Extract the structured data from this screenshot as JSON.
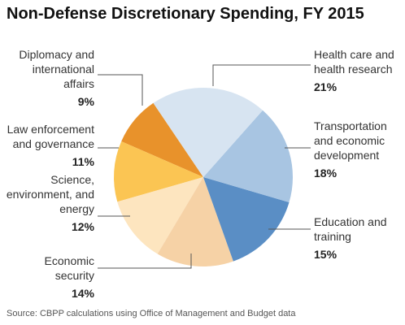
{
  "chart_data": {
    "type": "pie",
    "title": "Non-Defense Discretionary Spending, FY 2015",
    "source": "Source: CBPP calculations using Office of Management and Budget data",
    "categories": [
      "Health care and health research",
      "Transportation and economic development",
      "Education and training",
      "Economic security",
      "Science, environment, and energy",
      "Law enforcement and governance",
      "Diplomacy and international affairs"
    ],
    "values": [
      21,
      18,
      15,
      14,
      12,
      11,
      9
    ],
    "value_labels": [
      "21%",
      "18%",
      "15%",
      "14%",
      "12%",
      "11%",
      "9%"
    ],
    "colors": [
      "#d7e4f1",
      "#a8c5e2",
      "#5a8ec5",
      "#f6d2a6",
      "#fde5bf",
      "#fbc553",
      "#e8922b"
    ]
  }
}
